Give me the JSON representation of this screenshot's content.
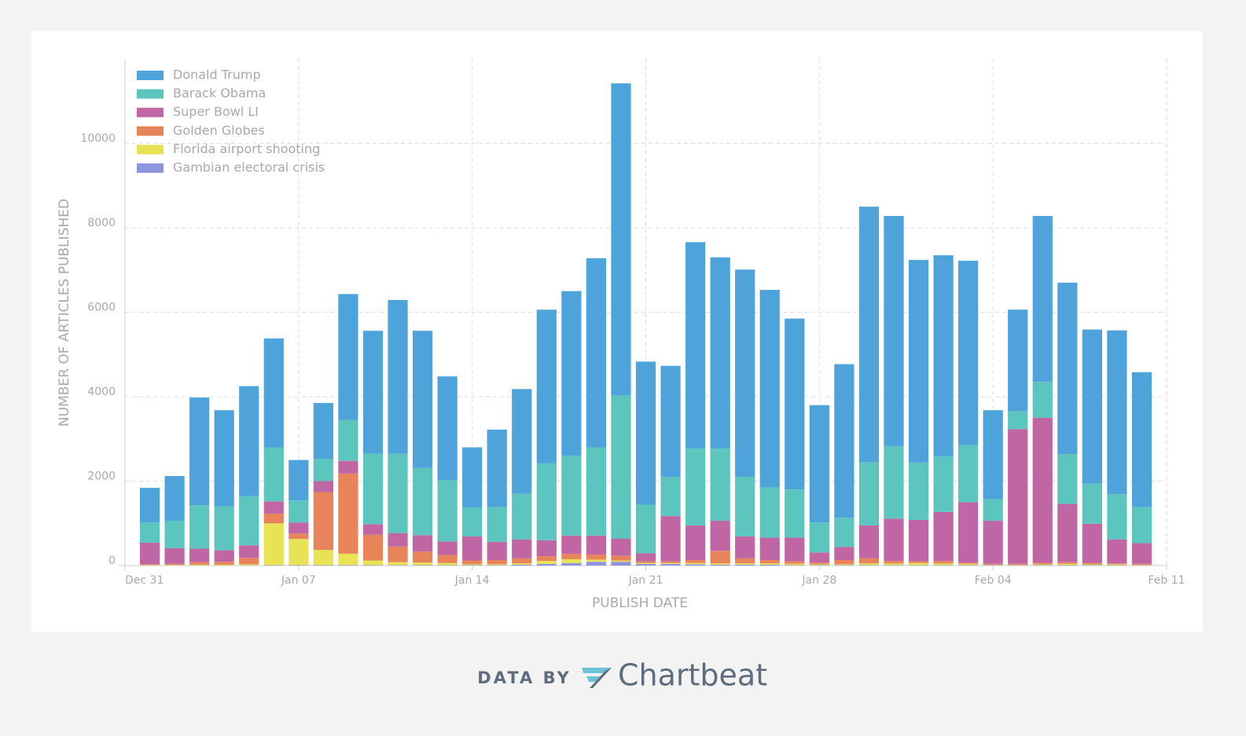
{
  "chart_data": {
    "type": "stacked_bar",
    "ylabel": "NUMBER OF ARTICLES PUBLISHED",
    "xlabel": "PUBLISH DATE",
    "x": [
      "Jan 01",
      "Jan 02",
      "Jan 03",
      "Jan 04",
      "Jan 05",
      "Jan 06",
      "Jan 07",
      "Jan 08",
      "Jan 09",
      "Jan 10",
      "Jan 11",
      "Jan 12",
      "Jan 13",
      "Jan 14",
      "Jan 15",
      "Jan 16",
      "Jan 17",
      "Jan 18",
      "Jan 19",
      "Jan 20",
      "Jan 21",
      "Jan 22",
      "Jan 23",
      "Jan 24",
      "Jan 25",
      "Jan 26",
      "Jan 27",
      "Jan 28",
      "Jan 29",
      "Jan 30",
      "Jan 31",
      "Feb 01",
      "Feb 02",
      "Feb 03",
      "Feb 04",
      "Feb 05",
      "Feb 06",
      "Feb 07",
      "Feb 08",
      "Feb 09",
      "Feb 10"
    ],
    "series": [
      {
        "name": "Donald Trump",
        "color": "#4ea3da",
        "values": [
          820,
          1060,
          2550,
          2280,
          2610,
          2580,
          960,
          1320,
          2980,
          2910,
          3640,
          3250,
          2460,
          1430,
          1840,
          2480,
          3640,
          3900,
          4480,
          7390,
          3390,
          2630,
          4890,
          4530,
          4910,
          4680,
          4050,
          2780,
          3640,
          6050,
          5450,
          4800,
          4770,
          4370,
          2110,
          2410,
          3930,
          4060,
          3650,
          3880,
          3200
        ]
      },
      {
        "name": "Barack Obama",
        "color": "#5cc5bd",
        "values": [
          480,
          650,
          1030,
          1040,
          1160,
          1280,
          520,
          530,
          970,
          1670,
          1880,
          1590,
          1450,
          680,
          820,
          1080,
          1820,
          1890,
          2090,
          3390,
          1150,
          930,
          1820,
          1710,
          1410,
          1190,
          1140,
          710,
          690,
          1500,
          1720,
          1360,
          1310,
          1350,
          510,
          420,
          850,
          1180,
          950,
          1070,
          850
        ]
      },
      {
        "name": "Super Bowl LI",
        "color": "#c066a5",
        "values": [
          510,
          370,
          320,
          270,
          300,
          290,
          260,
          260,
          300,
          250,
          320,
          390,
          320,
          570,
          430,
          450,
          380,
          430,
          450,
          410,
          190,
          1070,
          820,
          710,
          520,
          530,
          560,
          240,
          310,
          780,
          1000,
          980,
          1160,
          1430,
          1020,
          3190,
          3440,
          1380,
          930,
          570,
          490
        ]
      },
      {
        "name": "Golden Globes",
        "color": "#e8845a",
        "values": [
          15,
          25,
          60,
          70,
          150,
          230,
          130,
          1370,
          1900,
          610,
          370,
          260,
          190,
          90,
          100,
          120,
          110,
          130,
          120,
          110,
          40,
          40,
          70,
          300,
          120,
          80,
          60,
          40,
          100,
          120,
          60,
          40,
          60,
          30,
          20,
          20,
          30,
          40,
          30,
          20,
          20
        ]
      },
      {
        "name": "Florida airport shooting",
        "color": "#e8e355",
        "values": [
          10,
          10,
          15,
          15,
          25,
          990,
          620,
          360,
          270,
          110,
          70,
          60,
          50,
          20,
          20,
          30,
          70,
          90,
          50,
          30,
          20,
          20,
          30,
          30,
          30,
          30,
          30,
          20,
          20,
          40,
          40,
          50,
          40,
          30,
          10,
          10,
          20,
          30,
          20,
          20,
          10
        ]
      },
      {
        "name": "Gambian electoral crisis",
        "color": "#8f94e0",
        "values": [
          5,
          5,
          5,
          5,
          5,
          10,
          10,
          10,
          10,
          10,
          10,
          10,
          10,
          10,
          10,
          20,
          40,
          60,
          90,
          90,
          40,
          40,
          30,
          20,
          20,
          20,
          10,
          10,
          10,
          10,
          10,
          10,
          10,
          10,
          10,
          10,
          10,
          10,
          10,
          10,
          10
        ]
      }
    ],
    "xlim": [
      "Dec 31",
      "Feb 11"
    ],
    "xticks": [
      "Dec 31",
      "Jan 07",
      "Jan 14",
      "Jan 21",
      "Jan 28",
      "Feb 04",
      "Feb 11"
    ],
    "ylim": [
      0,
      12000
    ],
    "yticks": [
      0,
      2000,
      4000,
      6000,
      8000,
      10000
    ],
    "grid": true,
    "legend": "top-left"
  },
  "footer": {
    "prefix": "DATA BY",
    "brand": "Chartbeat"
  }
}
